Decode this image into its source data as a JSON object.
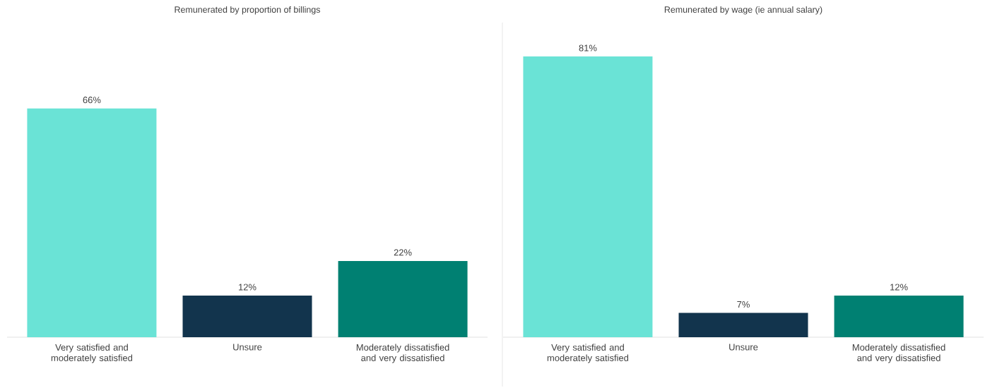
{
  "chart_data": [
    {
      "type": "bar",
      "title": "Remunerated by proportion of billings",
      "categories": [
        "Very satisfied and moderately satisfied",
        "Unsure",
        "Moderately dissatisfied and very dissatisfied"
      ],
      "values": [
        66,
        12,
        22
      ],
      "colors": [
        "#6ae3d6",
        "#12344d",
        "#008072"
      ],
      "value_labels": [
        "66%",
        "12%",
        "22%"
      ]
    },
    {
      "type": "bar",
      "title": "Remunerated by wage (ie annual salary)",
      "categories": [
        "Very satisfied and moderately satisfied",
        "Unsure",
        "Moderately dissatisfied and very dissatisfied"
      ],
      "values": [
        81,
        7,
        12
      ],
      "colors": [
        "#6ae3d6",
        "#12344d",
        "#008072"
      ],
      "value_labels": [
        "81%",
        "7%",
        "12%"
      ]
    }
  ]
}
